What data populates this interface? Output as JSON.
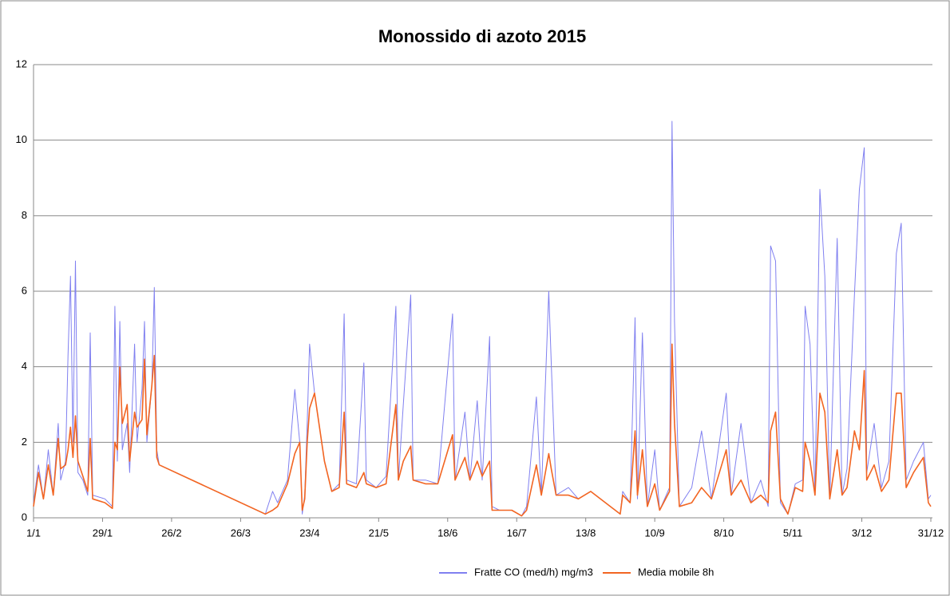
{
  "chart_data": {
    "type": "line",
    "title": "Monossido di azoto 2015",
    "x": [
      1,
      3,
      5,
      7,
      9,
      11,
      12,
      14,
      15,
      16,
      17,
      18,
      19,
      21,
      23,
      24,
      25,
      30,
      33,
      34,
      35,
      36,
      37,
      39,
      40,
      42,
      43,
      45,
      46,
      47,
      49,
      50,
      51,
      52,
      95,
      98,
      100,
      104,
      107,
      109,
      110,
      111,
      112,
      113,
      115,
      119,
      122,
      125,
      127,
      128,
      132,
      135,
      136,
      140,
      144,
      148,
      149,
      151,
      154,
      155,
      160,
      165,
      171,
      172,
      176,
      178,
      181,
      183,
      186,
      187,
      190,
      195,
      199,
      201,
      205,
      207,
      210,
      211,
      213,
      218,
      222,
      227,
      239,
      240,
      243,
      245,
      246,
      248,
      250,
      253,
      255,
      259,
      260,
      261,
      263,
      268,
      272,
      276,
      282,
      284,
      288,
      292,
      296,
      299,
      300,
      302,
      304,
      307,
      310,
      313,
      314,
      316,
      318,
      320,
      322,
      324,
      327,
      329,
      331,
      334,
      336,
      338,
      339,
      342,
      345,
      348,
      351,
      353,
      355,
      358,
      362,
      364,
      365
    ],
    "series": [
      {
        "name": "Fratte CO (med/h) mg/m3",
        "color": "#8080f0",
        "values": [
          0.4,
          1.4,
          0.5,
          1.8,
          0.6,
          2.5,
          1.0,
          1.5,
          4.3,
          6.4,
          2.0,
          6.8,
          1.2,
          1.0,
          0.6,
          4.9,
          0.6,
          0.5,
          0.3,
          5.6,
          1.5,
          5.2,
          1.8,
          2.5,
          1.2,
          4.6,
          2.0,
          3.4,
          5.2,
          2.0,
          3.5,
          6.1,
          1.8,
          1.4,
          0.1,
          0.7,
          0.4,
          1.0,
          3.4,
          2.0,
          0.1,
          0.6,
          2.5,
          4.6,
          3.3,
          1.5,
          0.7,
          0.9,
          5.4,
          1.0,
          0.9,
          4.1,
          1.0,
          0.8,
          1.1,
          5.6,
          1.0,
          3.0,
          5.9,
          1.0,
          1.0,
          0.9,
          5.4,
          1.0,
          2.8,
          1.0,
          3.1,
          1.0,
          4.8,
          0.3,
          0.2,
          0.2,
          0.05,
          0.3,
          3.2,
          0.6,
          6.0,
          4.1,
          0.6,
          0.8,
          0.5,
          0.7,
          0.1,
          0.7,
          0.4,
          5.3,
          0.5,
          4.9,
          0.3,
          1.8,
          0.2,
          0.8,
          10.5,
          5.2,
          0.3,
          0.8,
          2.3,
          0.5,
          3.3,
          0.6,
          2.5,
          0.4,
          1.0,
          0.3,
          7.2,
          6.8,
          0.4,
          0.1,
          0.9,
          1.0,
          5.6,
          4.6,
          0.6,
          8.7,
          6.4,
          0.5,
          7.4,
          0.6,
          1.3,
          5.9,
          8.7,
          9.8,
          1.2,
          2.5,
          0.8,
          1.5,
          7.0,
          7.8,
          1.0,
          1.5,
          2.0,
          0.5,
          0.6
        ]
      },
      {
        "name": "Media mobile 8h",
        "color": "#f26522",
        "values": [
          0.3,
          1.2,
          0.5,
          1.4,
          0.6,
          2.1,
          1.3,
          1.4,
          1.8,
          2.4,
          1.6,
          2.7,
          1.5,
          1.1,
          0.7,
          2.1,
          0.5,
          0.4,
          0.25,
          2.0,
          1.8,
          4.0,
          2.5,
          3.0,
          1.5,
          2.8,
          2.4,
          2.6,
          4.2,
          2.2,
          3.5,
          4.3,
          1.6,
          1.4,
          0.1,
          0.2,
          0.3,
          0.9,
          1.7,
          2.0,
          0.2,
          0.5,
          2.0,
          2.9,
          3.3,
          1.5,
          0.7,
          0.8,
          2.8,
          0.9,
          0.8,
          1.2,
          0.9,
          0.8,
          0.9,
          3.0,
          1.0,
          1.5,
          1.9,
          1.0,
          0.9,
          0.9,
          2.2,
          1.0,
          1.6,
          1.0,
          1.5,
          1.1,
          1.5,
          0.2,
          0.2,
          0.2,
          0.05,
          0.2,
          1.4,
          0.6,
          1.7,
          1.3,
          0.6,
          0.6,
          0.5,
          0.7,
          0.1,
          0.6,
          0.4,
          2.3,
          0.6,
          1.8,
          0.3,
          0.9,
          0.2,
          0.7,
          4.6,
          2.5,
          0.3,
          0.4,
          0.8,
          0.5,
          1.8,
          0.6,
          1.0,
          0.4,
          0.6,
          0.4,
          2.3,
          2.8,
          0.5,
          0.1,
          0.8,
          0.7,
          2.0,
          1.5,
          0.6,
          3.3,
          2.8,
          0.5,
          1.8,
          0.6,
          0.8,
          2.3,
          1.8,
          3.9,
          1.0,
          1.4,
          0.7,
          1.0,
          3.3,
          3.3,
          0.8,
          1.2,
          1.6,
          0.4,
          0.3
        ]
      }
    ],
    "xlim": [
      1,
      365
    ],
    "xticks": [
      {
        "value": 1,
        "label": "1/1"
      },
      {
        "value": 29,
        "label": "29/1"
      },
      {
        "value": 57,
        "label": "26/2"
      },
      {
        "value": 85,
        "label": "26/3"
      },
      {
        "value": 113,
        "label": "23/4"
      },
      {
        "value": 141,
        "label": "21/5"
      },
      {
        "value": 169,
        "label": "18/6"
      },
      {
        "value": 197,
        "label": "16/7"
      },
      {
        "value": 225,
        "label": "13/8"
      },
      {
        "value": 253,
        "label": "10/9"
      },
      {
        "value": 281,
        "label": "8/10"
      },
      {
        "value": 309,
        "label": "5/11"
      },
      {
        "value": 337,
        "label": "3/12"
      },
      {
        "value": 365,
        "label": "31/12"
      }
    ],
    "ylim": [
      0,
      12
    ],
    "yticks": [
      0,
      2,
      4,
      6,
      8,
      10,
      12
    ],
    "grid": true,
    "legend": "bottom"
  }
}
